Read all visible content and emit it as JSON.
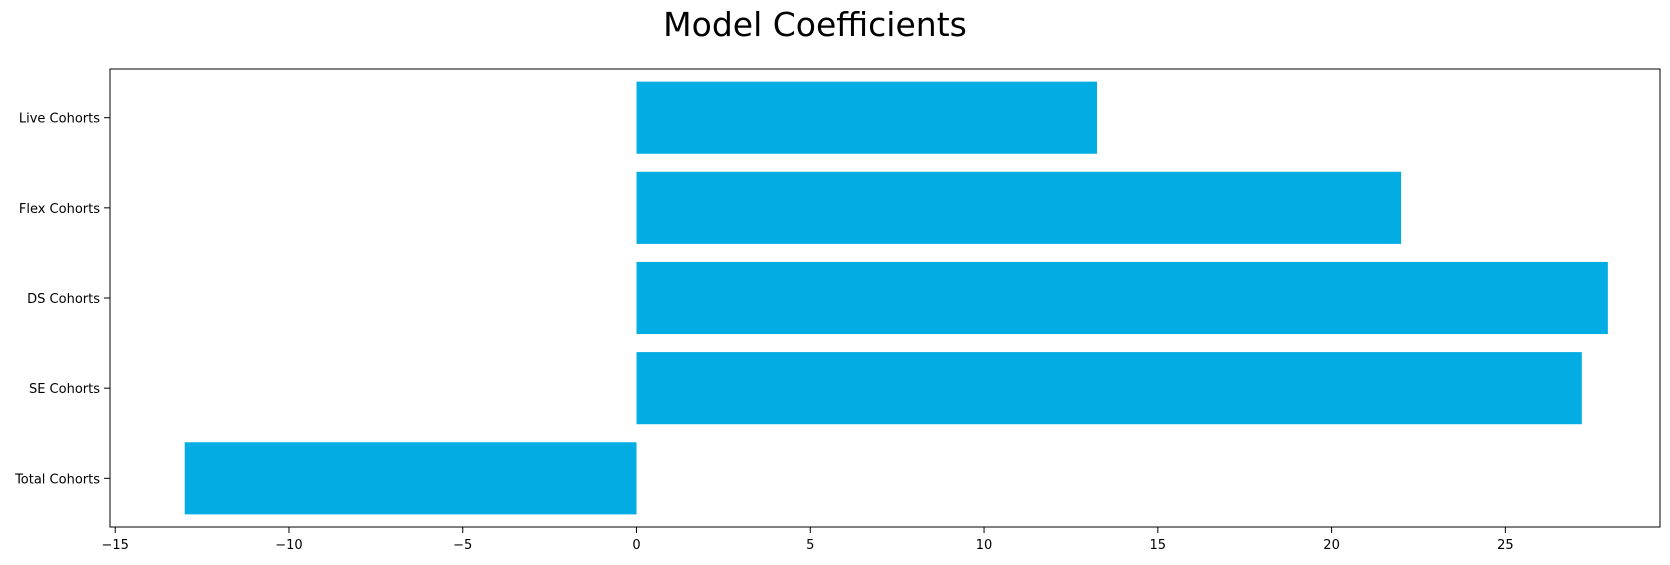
{
  "chart_data": {
    "type": "bar",
    "orientation": "horizontal",
    "title": "Model Coefficients",
    "xlabel": "",
    "ylabel": "",
    "categories": [
      "Total Cohorts",
      "SE Cohorts",
      "DS Cohorts",
      "Flex Cohorts",
      "Live Cohorts"
    ],
    "values": [
      -13.0,
      27.2,
      27.95,
      22.0,
      13.25
    ],
    "xlim": [
      -15.15,
      29.45
    ],
    "xticks": [
      -15,
      -10,
      -5,
      0,
      5,
      10,
      15,
      20,
      25
    ],
    "xtick_labels": [
      "−15",
      "−10",
      "−5",
      "0",
      "5",
      "10",
      "15",
      "20",
      "25"
    ],
    "grid": false,
    "legend": "none",
    "bar_color": "#03ADE3"
  }
}
